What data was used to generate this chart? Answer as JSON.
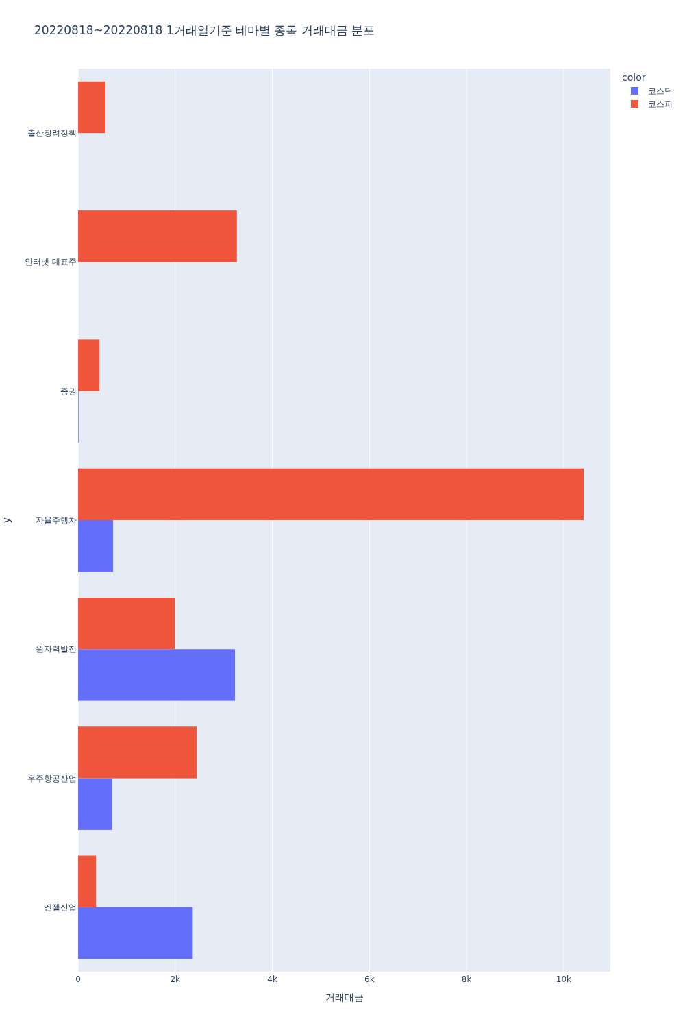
{
  "chart_data": {
    "type": "bar",
    "orientation": "horizontal",
    "title": "20220818~20220818 1거래일기준 테마별 종목 거래대금 분포",
    "categories": [
      "출산장려정책",
      "인터넷 대표주",
      "증권",
      "자율주행차",
      "원자력발전",
      "우주항공산업",
      "엔젤산업"
    ],
    "series": [
      {
        "name": "코스닥",
        "color": "#636efa",
        "values": [
          null,
          null,
          10,
          720,
          3230,
          700,
          2360
        ]
      },
      {
        "name": "코스피",
        "color": "#ef553b",
        "values": [
          565,
          3270,
          440,
          10410,
          1990,
          2440,
          370
        ]
      }
    ],
    "xlabel": "거래대금",
    "ylabel": "y",
    "legend_title": "color",
    "legend": "top right",
    "grid": "x",
    "xlim": [
      0,
      10960
    ],
    "xticks": [
      0,
      {
        "value": 2000,
        "label": "2k"
      },
      {
        "value": 4000,
        "label": "4k"
      },
      {
        "value": 6000,
        "label": "6k"
      },
      {
        "value": 8000,
        "label": "8k"
      },
      {
        "value": 10000,
        "label": "10k"
      }
    ]
  }
}
